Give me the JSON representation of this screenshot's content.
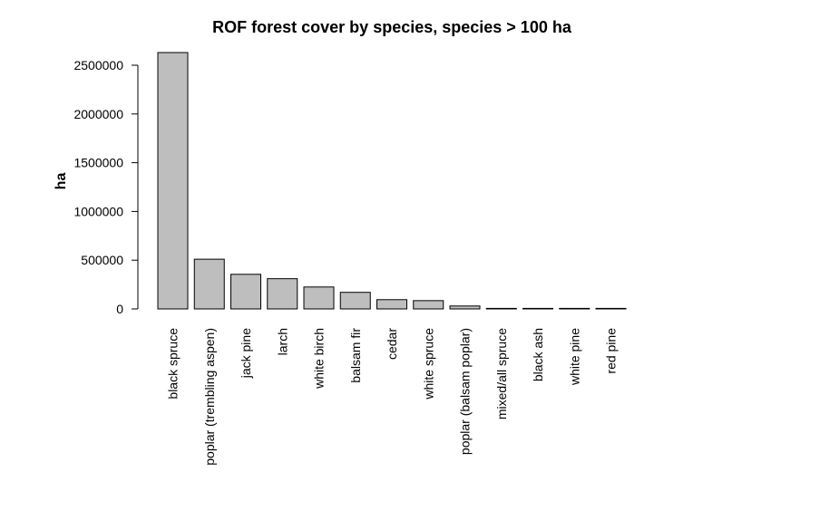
{
  "chart_data": {
    "type": "bar",
    "title": "ROF forest cover by species, species > 100 ha",
    "xlabel": "",
    "ylabel": "ha",
    "categories": [
      "black spruce",
      "poplar (trembling aspen)",
      "jack pine",
      "larch",
      "white birch",
      "balsam fir",
      "cedar",
      "white spruce",
      "poplar (balsam poplar)",
      "mixed/all spruce",
      "black ash",
      "white pine",
      "red pine"
    ],
    "values": [
      2630000,
      510000,
      355000,
      310000,
      225000,
      170000,
      95000,
      85000,
      30000,
      1500,
      800,
      500,
      300
    ],
    "ylim": [
      0,
      2500000
    ],
    "yticks": [
      0,
      500000,
      1000000,
      1500000,
      2000000,
      2500000
    ],
    "ytick_labels": [
      "0",
      "500000",
      "1000000",
      "1500000",
      "2000000",
      "2500000"
    ],
    "bar_color": "#bebebe",
    "grid": false,
    "legend": "none"
  }
}
